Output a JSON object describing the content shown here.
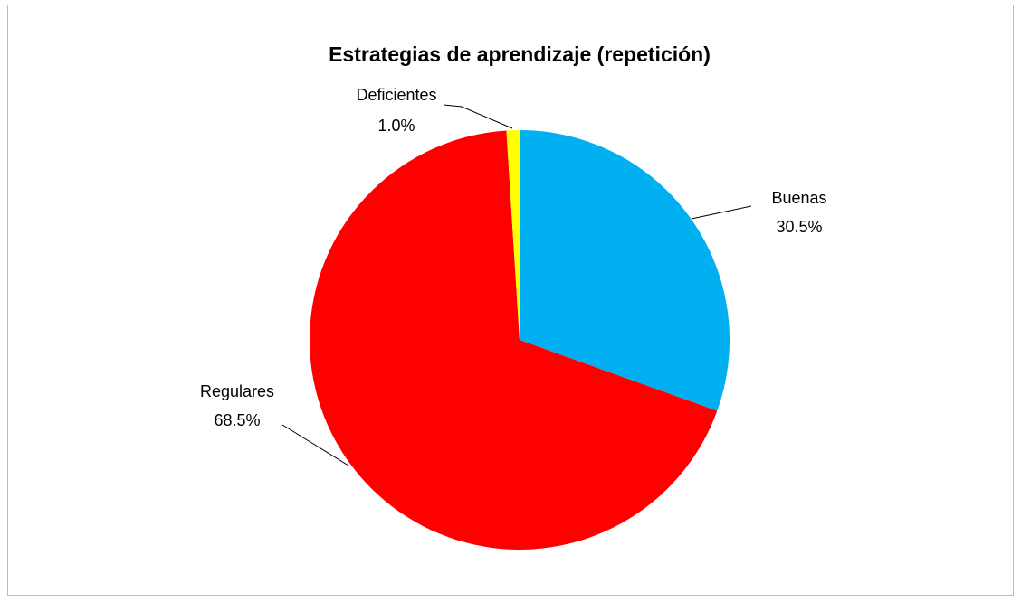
{
  "chart_data": {
    "type": "pie",
    "title": "Estrategias de aprendizaje (repetición)",
    "categories": [
      "Buenas",
      "Regulares",
      "Deficientes"
    ],
    "values": [
      30.5,
      68.5,
      1.0
    ],
    "value_labels": [
      "30.5%",
      "68.5%",
      "1.0%"
    ],
    "colors": [
      "#00b0f0",
      "#ff0000",
      "#ffff00"
    ]
  }
}
